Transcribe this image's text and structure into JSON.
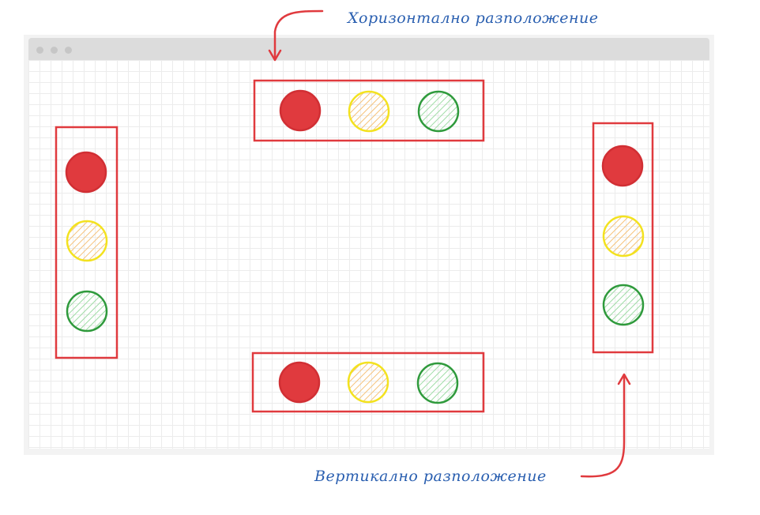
{
  "labels": {
    "horizontal": "Хоризонтално разположение",
    "vertical": "Вертикално разположение"
  },
  "colors": {
    "frame": "#e03a3e",
    "red": "#e03a3e",
    "yellow": "#f3e21f",
    "yellow_hatch": "#f5c27a",
    "green": "#2f9a3c",
    "green_hatch": "#9fdca6",
    "label_text": "#2a5fb0",
    "arrow": "#e03a3e",
    "window_bar": "#dcdcdc",
    "grid": "#ececec"
  },
  "icons": [
    "arrow-down-icon",
    "arrow-up-icon"
  ],
  "traffic_lights": [
    {
      "name": "top-horizontal",
      "orientation": "horizontal",
      "lights": [
        "red",
        "yellow",
        "green"
      ]
    },
    {
      "name": "bottom-horizontal",
      "orientation": "horizontal",
      "lights": [
        "red",
        "yellow",
        "green"
      ]
    },
    {
      "name": "left-vertical",
      "orientation": "vertical",
      "lights": [
        "red",
        "yellow",
        "green"
      ]
    },
    {
      "name": "right-vertical",
      "orientation": "vertical",
      "lights": [
        "red",
        "yellow",
        "green"
      ]
    }
  ]
}
